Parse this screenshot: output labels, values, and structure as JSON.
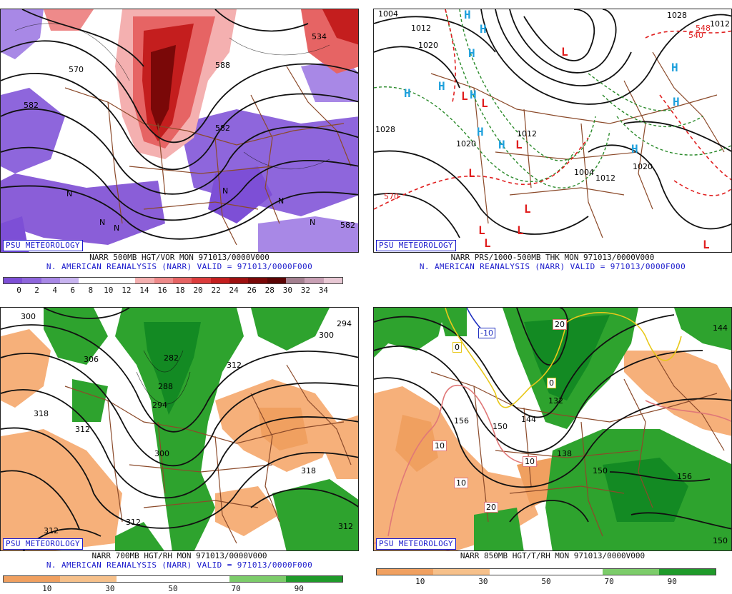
{
  "source_badge": "PSU METEOROLOGY",
  "panels": {
    "p1": {
      "caption_line1": "NARR 500MB HGT/VOR MON 971013/0000V000",
      "caption_line2": "N. AMERICAN REANALYSIS (NARR) VALID = 971013/0000F000",
      "scale_ticks": [
        "0",
        "2",
        "4",
        "6",
        "8",
        "10",
        "12",
        "14",
        "16",
        "18",
        "20",
        "22",
        "24",
        "26",
        "28",
        "30",
        "32",
        "34"
      ],
      "scale_colors": [
        "#7d4fd6",
        "#8e66dc",
        "#a888e6",
        "#c8b4f0",
        "#ffffff",
        "#ffffff",
        "#ffffff",
        "#f4b0b0",
        "#ee8a8a",
        "#e66464",
        "#dc3c3c",
        "#c41e1e",
        "#9e1010",
        "#7a0808",
        "#5c0505",
        "#a48090",
        "#c8a0b4",
        "#e8c8d4"
      ],
      "contour_labels": [
        "570",
        "582",
        "588",
        "534",
        "582",
        "582",
        "N",
        "N",
        "N",
        "N",
        "N",
        "N"
      ],
      "colors": {
        "positive": "#d43030",
        "negative": "#8a5ed8",
        "border": "#8b4a2a"
      }
    },
    "p2": {
      "caption_line1": "NARR PRS/1000-500MB THK MON 971013/0000V000",
      "caption_line2": "N. AMERICAN REANALYSIS (NARR) VALID = 971013/0000F000",
      "contour_labels": [
        "1004",
        "1012",
        "1020",
        "1028",
        "1028",
        "1012",
        "1020",
        "1004",
        "1012",
        "1020",
        "570",
        "540",
        "1012",
        "548"
      ],
      "highs": [
        "H",
        "H",
        "H",
        "H",
        "H",
        "H",
        "H",
        "H",
        "H",
        "H",
        "H"
      ],
      "lows": [
        "L",
        "L",
        "L",
        "L",
        "L",
        "L",
        "L",
        "L",
        "L",
        "L"
      ],
      "colors": {
        "high": "#1ea0dc",
        "low": "#e01e1e",
        "thickness_cold": "#2a8a2a",
        "thickness_warm": "#e02020"
      }
    },
    "p3": {
      "caption_line1": "NARR 700MB HGT/RH MON 971013/0000V000",
      "caption_line2": "N. AMERICAN REANALYSIS (NARR) VALID = 971013/0000F000",
      "scale_ticks": [
        "10",
        "30",
        "50",
        "70",
        "90"
      ],
      "scale_colors": [
        "#f0a060",
        "#f6c08a",
        "#ffffff",
        "#ffffff",
        "#7ccc6a",
        "#1f9a2a"
      ],
      "contour_labels": [
        "300",
        "294",
        "306",
        "300",
        "318",
        "282",
        "288",
        "312",
        "294",
        "300",
        "312",
        "318",
        "312",
        "312",
        "312"
      ],
      "colors": {
        "dry": "#f6b07a",
        "moist": "#2ea32e",
        "moist_dark": "#138a23"
      }
    },
    "p4": {
      "caption_line1": "NARR 850MB HGT/T/RH MON 971013/0000V000",
      "caption_line2": "",
      "scale_ticks": [
        "10",
        "30",
        "50",
        "70",
        "90"
      ],
      "scale_colors": [
        "#f0a060",
        "#f6c08a",
        "#ffffff",
        "#ffffff",
        "#7ccc6a",
        "#1f9a2a"
      ],
      "contour_labels": [
        "144",
        "132",
        "156",
        "150",
        "144",
        "138",
        "150",
        "156",
        "150"
      ],
      "temp_labels": [
        "-10",
        "0",
        "0",
        "10",
        "10",
        "10",
        "20",
        "20"
      ],
      "colors": {
        "dry": "#f6b07a",
        "moist": "#2ea32e",
        "moist_dark": "#138a23",
        "isotherm_zero": "#e8c81a",
        "isotherm_warm": "#e07878",
        "isotherm_cold": "#2030c0"
      }
    }
  }
}
